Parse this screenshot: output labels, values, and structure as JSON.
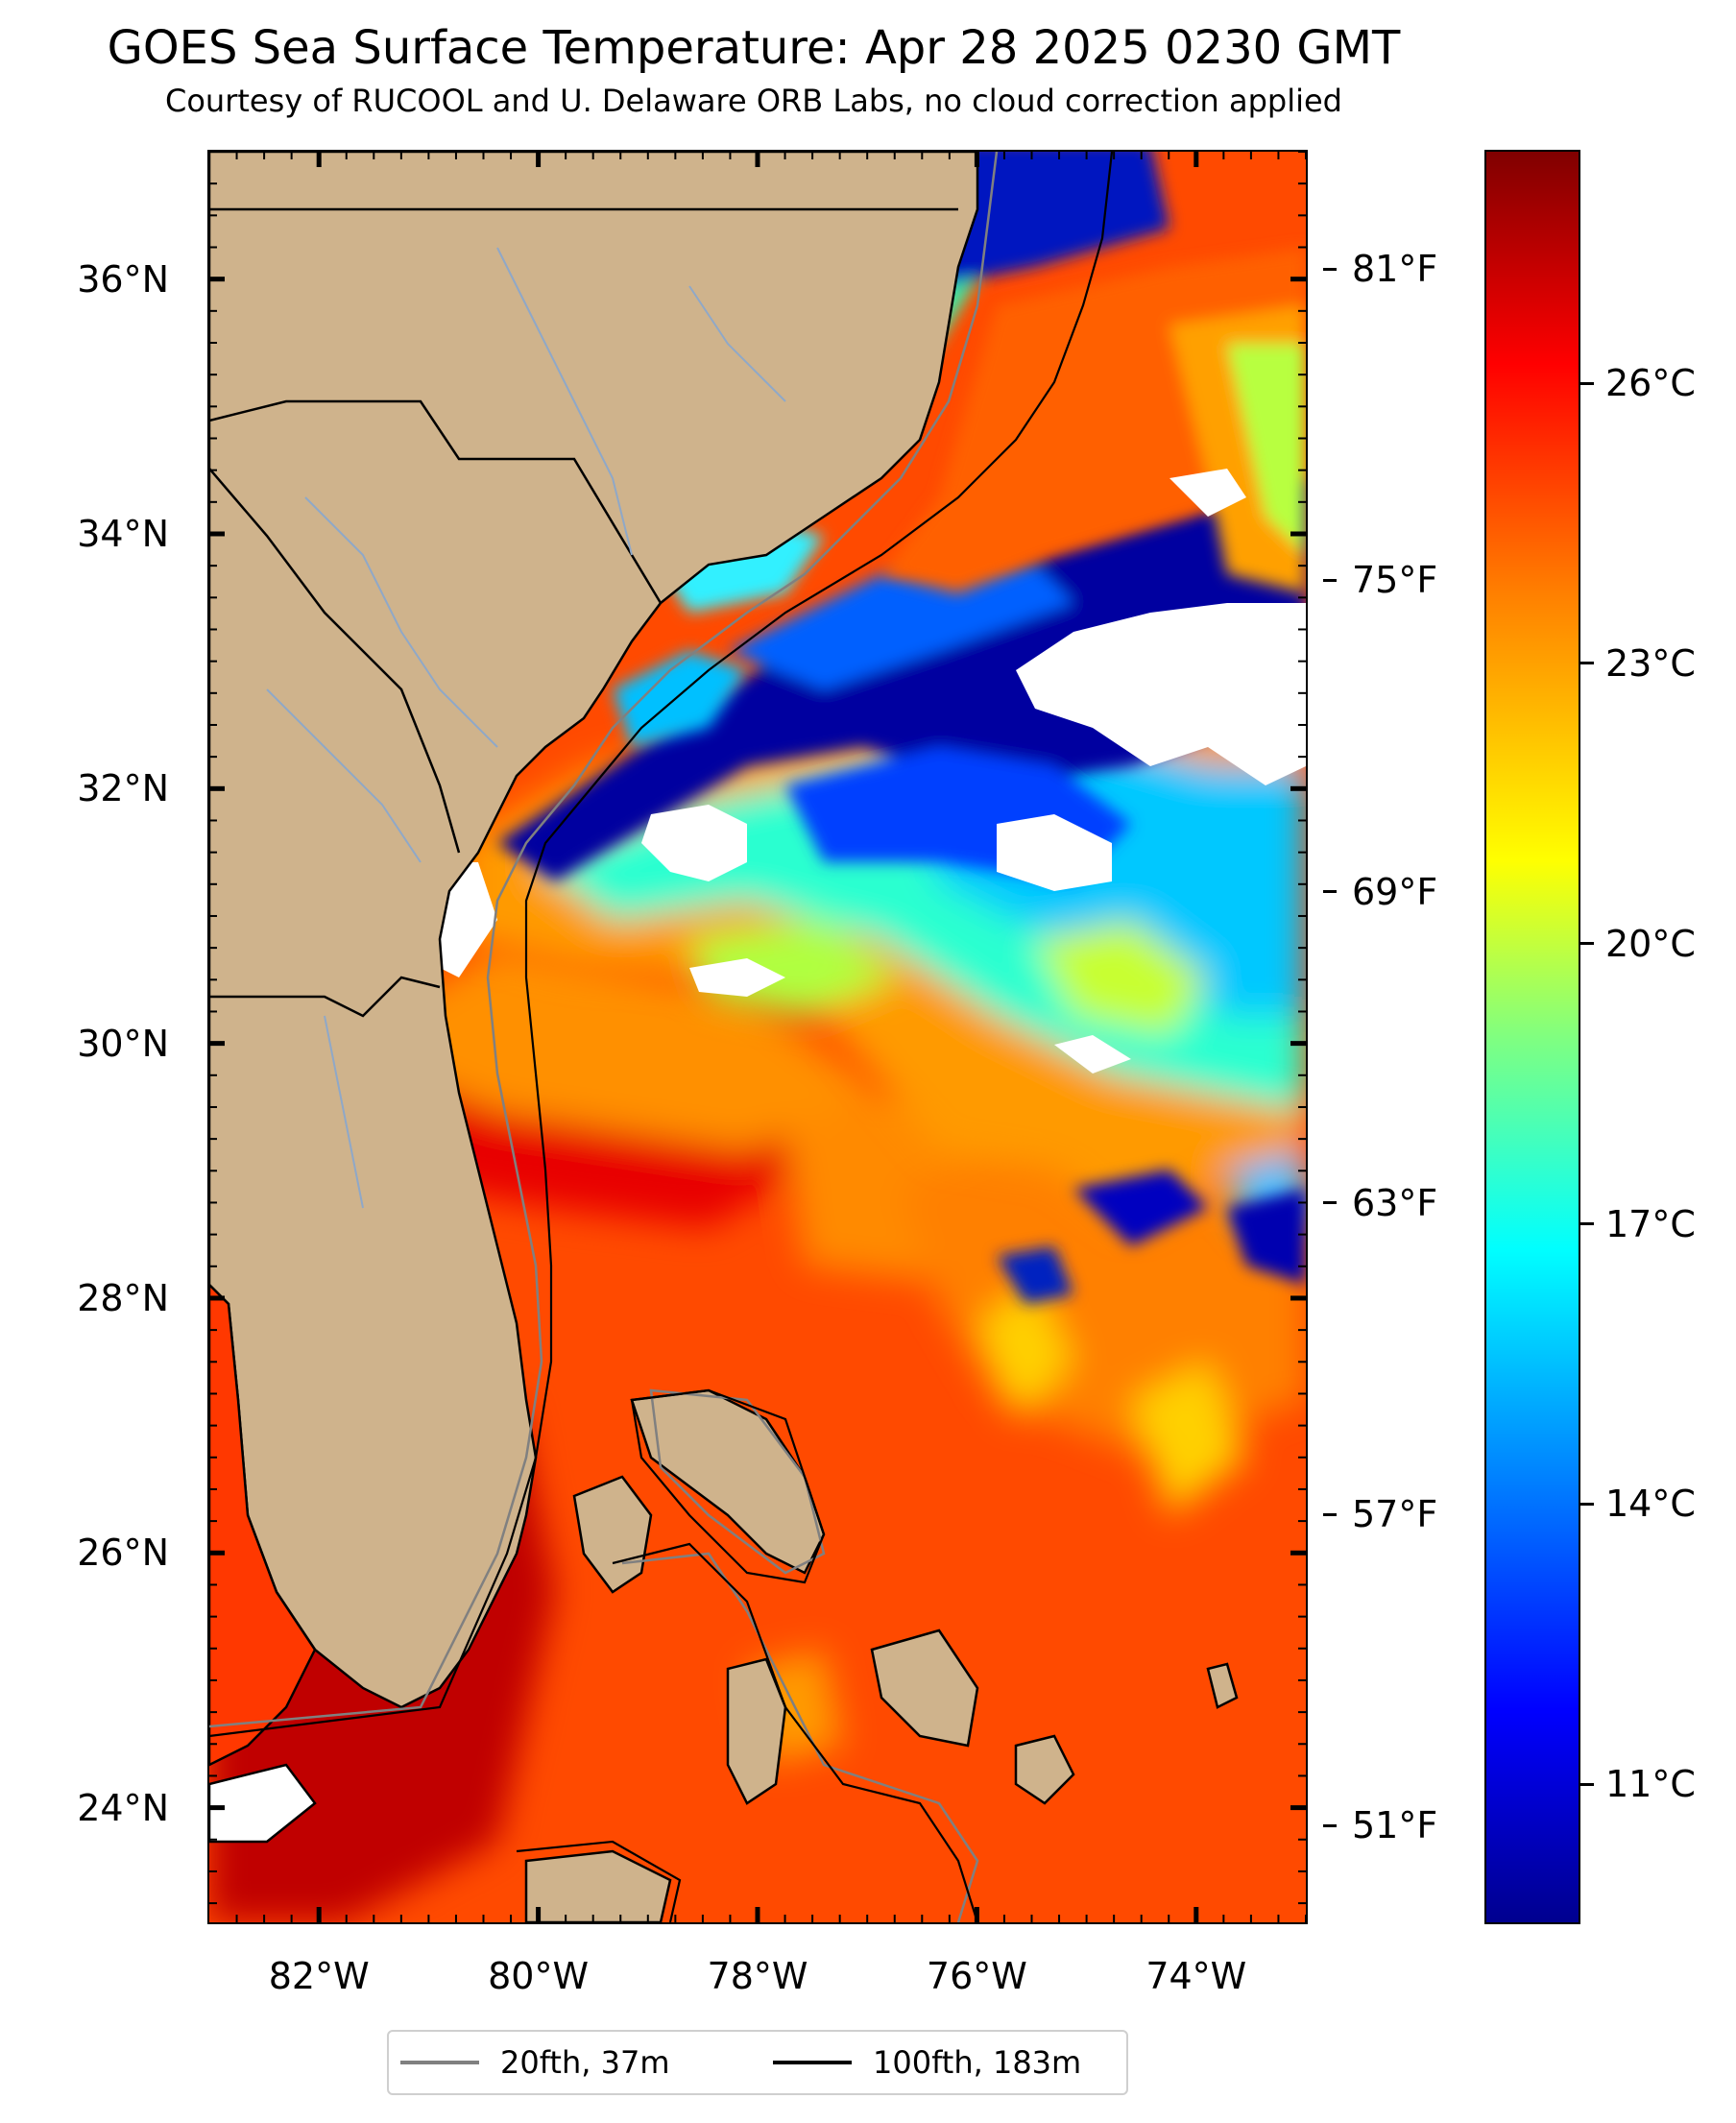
{
  "title": "GOES Sea Surface Temperature: Apr 28 2025 0230 GMT",
  "subtitle": "Courtesy of RUCOOL and U. Delaware ORB Labs, no cloud correction applied",
  "map": {
    "lon_range": [
      -83,
      -73
    ],
    "lat_range": [
      23.1,
      37
    ],
    "lat_ticks": [
      {
        "value": 36,
        "label": "36°N"
      },
      {
        "value": 34,
        "label": "34°N"
      },
      {
        "value": 32,
        "label": "32°N"
      },
      {
        "value": 30,
        "label": "30°N"
      },
      {
        "value": 28,
        "label": "28°N"
      },
      {
        "value": 26,
        "label": "26°N"
      },
      {
        "value": 24,
        "label": "24°N"
      }
    ],
    "lon_ticks": [
      {
        "value": -82,
        "label": "82°W"
      },
      {
        "value": -80,
        "label": "80°W"
      },
      {
        "value": -78,
        "label": "78°W"
      },
      {
        "value": -76,
        "label": "76°W"
      },
      {
        "value": -74,
        "label": "74°W"
      }
    ],
    "colors": {
      "land": "#cfb38c",
      "cloud": "#ffffff",
      "warm_sst": "#ff4a00",
      "river": "#8fa8c8",
      "isobath_20": "#808080",
      "isobath_100": "#000000"
    }
  },
  "colorbar": {
    "colormap": "jet",
    "range_c": [
      9.5,
      28.5
    ],
    "celsius_ticks": [
      {
        "value": 26,
        "label": "26°C"
      },
      {
        "value": 23,
        "label": "23°C"
      },
      {
        "value": 20,
        "label": "20°C"
      },
      {
        "value": 17,
        "label": "17°C"
      },
      {
        "value": 14,
        "label": "14°C"
      },
      {
        "value": 11,
        "label": "11°C"
      }
    ],
    "fahrenheit_ticks": [
      {
        "value": 81,
        "label": "81°F"
      },
      {
        "value": 75,
        "label": "75°F"
      },
      {
        "value": 69,
        "label": "69°F"
      },
      {
        "value": 63,
        "label": "63°F"
      },
      {
        "value": 57,
        "label": "57°F"
      },
      {
        "value": 51,
        "label": "51°F"
      }
    ]
  },
  "legend": {
    "items": [
      {
        "label": "20fth, 37m",
        "color": "#808080"
      },
      {
        "label": "100fth, 183m",
        "color": "#000000"
      }
    ]
  }
}
